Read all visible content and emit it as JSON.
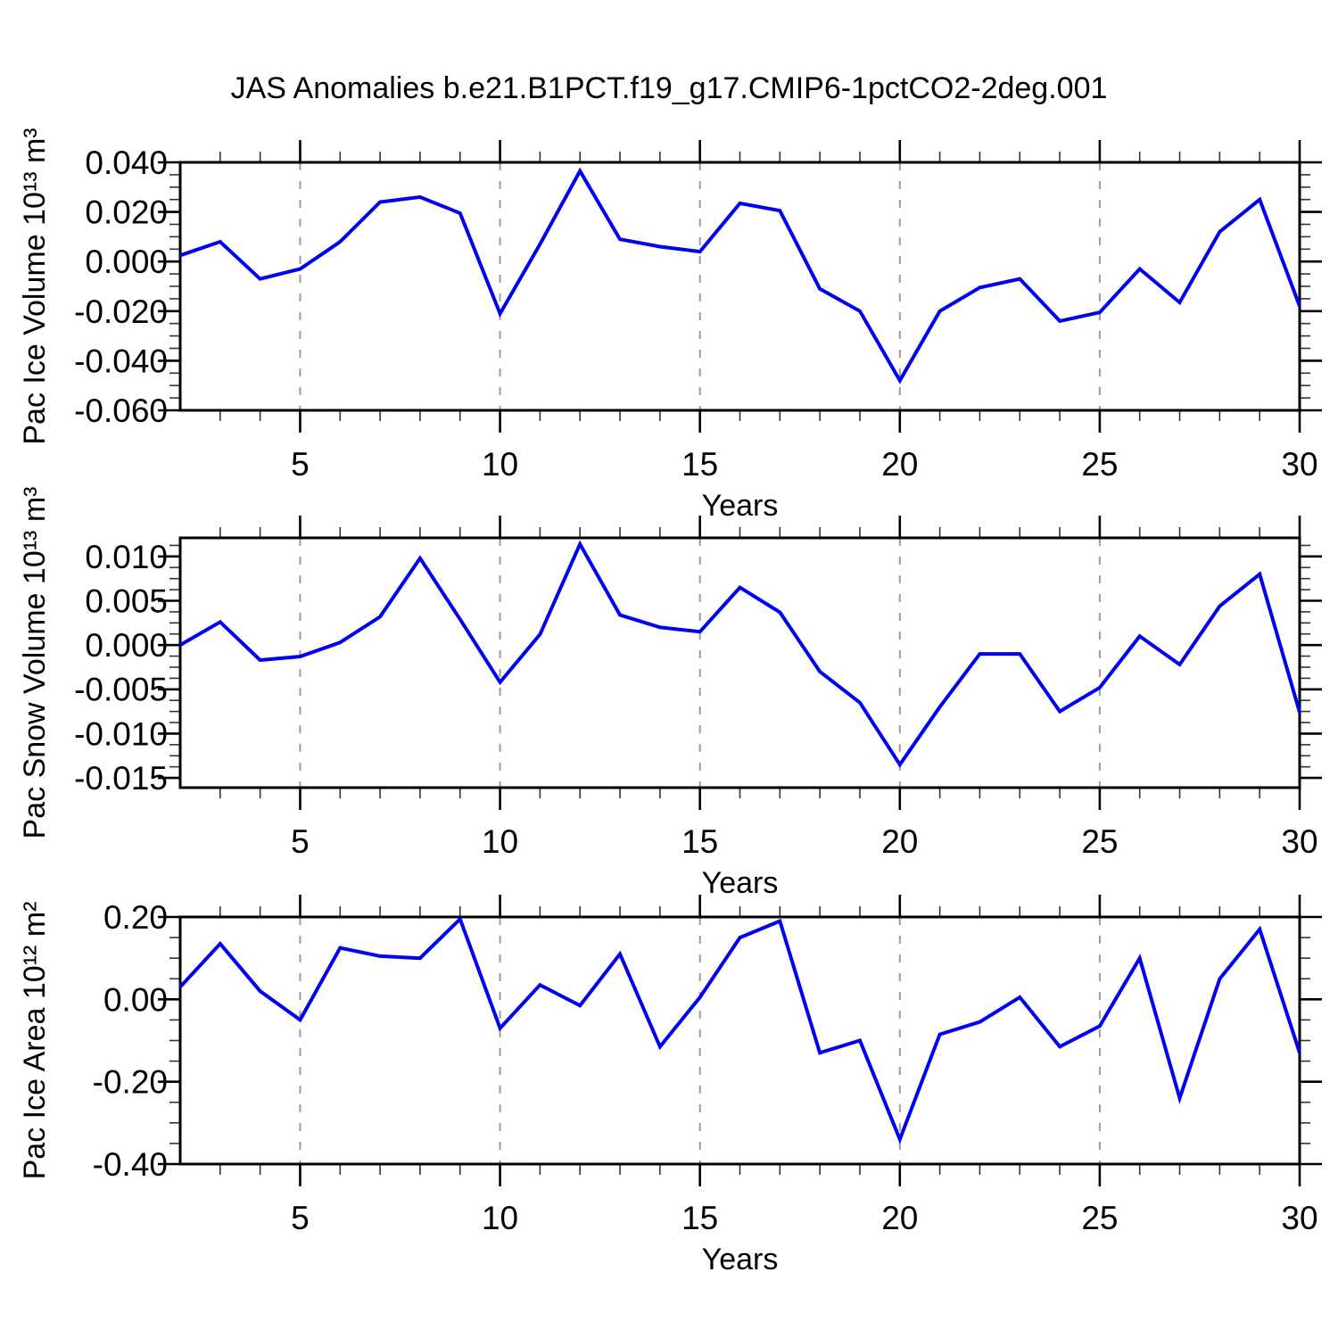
{
  "title": "JAS Anomalies b.e21.B1PCT.f19_g17.CMIP6-1pctCO2-2deg.001",
  "xlabel": "Years",
  "style": {
    "line_color": "#0000f0",
    "grid_color": "#9c9c9c",
    "axis_color": "#000000",
    "background": "#ffffff"
  },
  "chart_data": [
    {
      "type": "line",
      "id": "pac-ice-volume",
      "ylabel": "Pac Ice Volume 10¹³ m³",
      "xlabel": "Years",
      "x": [
        2,
        3,
        4,
        5,
        6,
        7,
        8,
        9,
        10,
        11,
        12,
        13,
        14,
        15,
        16,
        17,
        18,
        19,
        20,
        21,
        22,
        23,
        24,
        25,
        26,
        27,
        28,
        29,
        30
      ],
      "values": [
        0.0025,
        0.008,
        -0.007,
        -0.003,
        0.008,
        0.024,
        0.026,
        0.0195,
        -0.021,
        0.007,
        0.0365,
        0.009,
        0.006,
        0.004,
        0.0235,
        0.0205,
        -0.011,
        -0.02,
        -0.048,
        -0.02,
        -0.0105,
        -0.007,
        -0.024,
        -0.0205,
        -0.003,
        -0.0165,
        0.012,
        0.025,
        -0.018
      ],
      "xlim": [
        2,
        30
      ],
      "ylim": [
        -0.06,
        0.04
      ],
      "y_major_values": [
        0.04,
        0.02,
        0,
        -0.02,
        -0.04,
        -0.06
      ],
      "y_major_labels": [
        "0.040",
        "0.020",
        "0.000",
        "-0.020",
        "-0.040",
        "-0.060"
      ],
      "y_minor_step": 0.005,
      "x_major_values": [
        5,
        10,
        15,
        20,
        25,
        30
      ],
      "x_major_labels": [
        "5",
        "10",
        "15",
        "20",
        "25",
        "30"
      ],
      "x_minor_step": 1,
      "x_gridlines": [
        5,
        10,
        15,
        20,
        25
      ],
      "grid": "vertical-dashed",
      "legend": "none"
    },
    {
      "type": "line",
      "id": "pac-snow-volume",
      "ylabel": "Pac Snow Volume 10¹³ m³",
      "xlabel": "Years",
      "x": [
        2,
        3,
        4,
        5,
        6,
        7,
        8,
        9,
        10,
        11,
        12,
        13,
        14,
        15,
        16,
        17,
        18,
        19,
        20,
        21,
        22,
        23,
        24,
        25,
        26,
        27,
        28,
        29,
        30
      ],
      "values": [
        0.0,
        0.0026,
        -0.0017,
        -0.0013,
        0.0003,
        0.0032,
        0.0098,
        0.0029,
        -0.0042,
        0.0012,
        0.0114,
        0.0034,
        0.002,
        0.0015,
        0.0065,
        0.0037,
        -0.003,
        -0.0065,
        -0.0135,
        -0.007,
        -0.001,
        -0.001,
        -0.0075,
        -0.0048,
        0.001,
        -0.0022,
        0.0044,
        0.008,
        -0.0076
      ],
      "xlim": [
        2,
        30
      ],
      "ylim": [
        -0.0161,
        0.0121
      ],
      "y_major_values": [
        0.01,
        0.005,
        0,
        -0.005,
        -0.01,
        -0.015
      ],
      "y_major_labels": [
        "0.010",
        "0.005",
        "0.000",
        "-0.005",
        "-0.010",
        "-0.015"
      ],
      "y_minor_step": 0.00125,
      "x_major_values": [
        5,
        10,
        15,
        20,
        25,
        30
      ],
      "x_major_labels": [
        "5",
        "10",
        "15",
        "20",
        "25",
        "30"
      ],
      "x_minor_step": 1,
      "x_gridlines": [
        5,
        10,
        15,
        20,
        25
      ],
      "grid": "vertical-dashed",
      "legend": "none"
    },
    {
      "type": "line",
      "id": "pac-ice-area",
      "ylabel": "Pac Ice Area 10¹² m²",
      "xlabel": "Years",
      "x": [
        2,
        3,
        4,
        5,
        6,
        7,
        8,
        9,
        10,
        11,
        12,
        13,
        14,
        15,
        16,
        17,
        18,
        19,
        20,
        21,
        22,
        23,
        24,
        25,
        26,
        27,
        28,
        29,
        30
      ],
      "values": [
        0.03,
        0.135,
        0.02,
        -0.05,
        0.125,
        0.105,
        0.1,
        0.195,
        -0.07,
        0.035,
        -0.015,
        0.11,
        -0.115,
        0.005,
        0.15,
        0.19,
        -0.13,
        -0.1,
        -0.34,
        -0.085,
        -0.055,
        0.005,
        -0.115,
        -0.065,
        0.1,
        -0.24,
        0.05,
        0.17,
        -0.13
      ],
      "xlim": [
        2,
        30
      ],
      "ylim": [
        -0.4,
        0.2
      ],
      "y_major_values": [
        0.2,
        0,
        -0.2,
        -0.4
      ],
      "y_major_labels": [
        "0.20",
        "0.00",
        "-0.20",
        "-0.40"
      ],
      "y_minor_step": 0.05,
      "x_major_values": [
        5,
        10,
        15,
        20,
        25,
        30
      ],
      "x_major_labels": [
        "5",
        "10",
        "15",
        "20",
        "25",
        "30"
      ],
      "x_minor_step": 1,
      "x_gridlines": [
        5,
        10,
        15,
        20,
        25
      ],
      "grid": "vertical-dashed",
      "legend": "none"
    }
  ]
}
